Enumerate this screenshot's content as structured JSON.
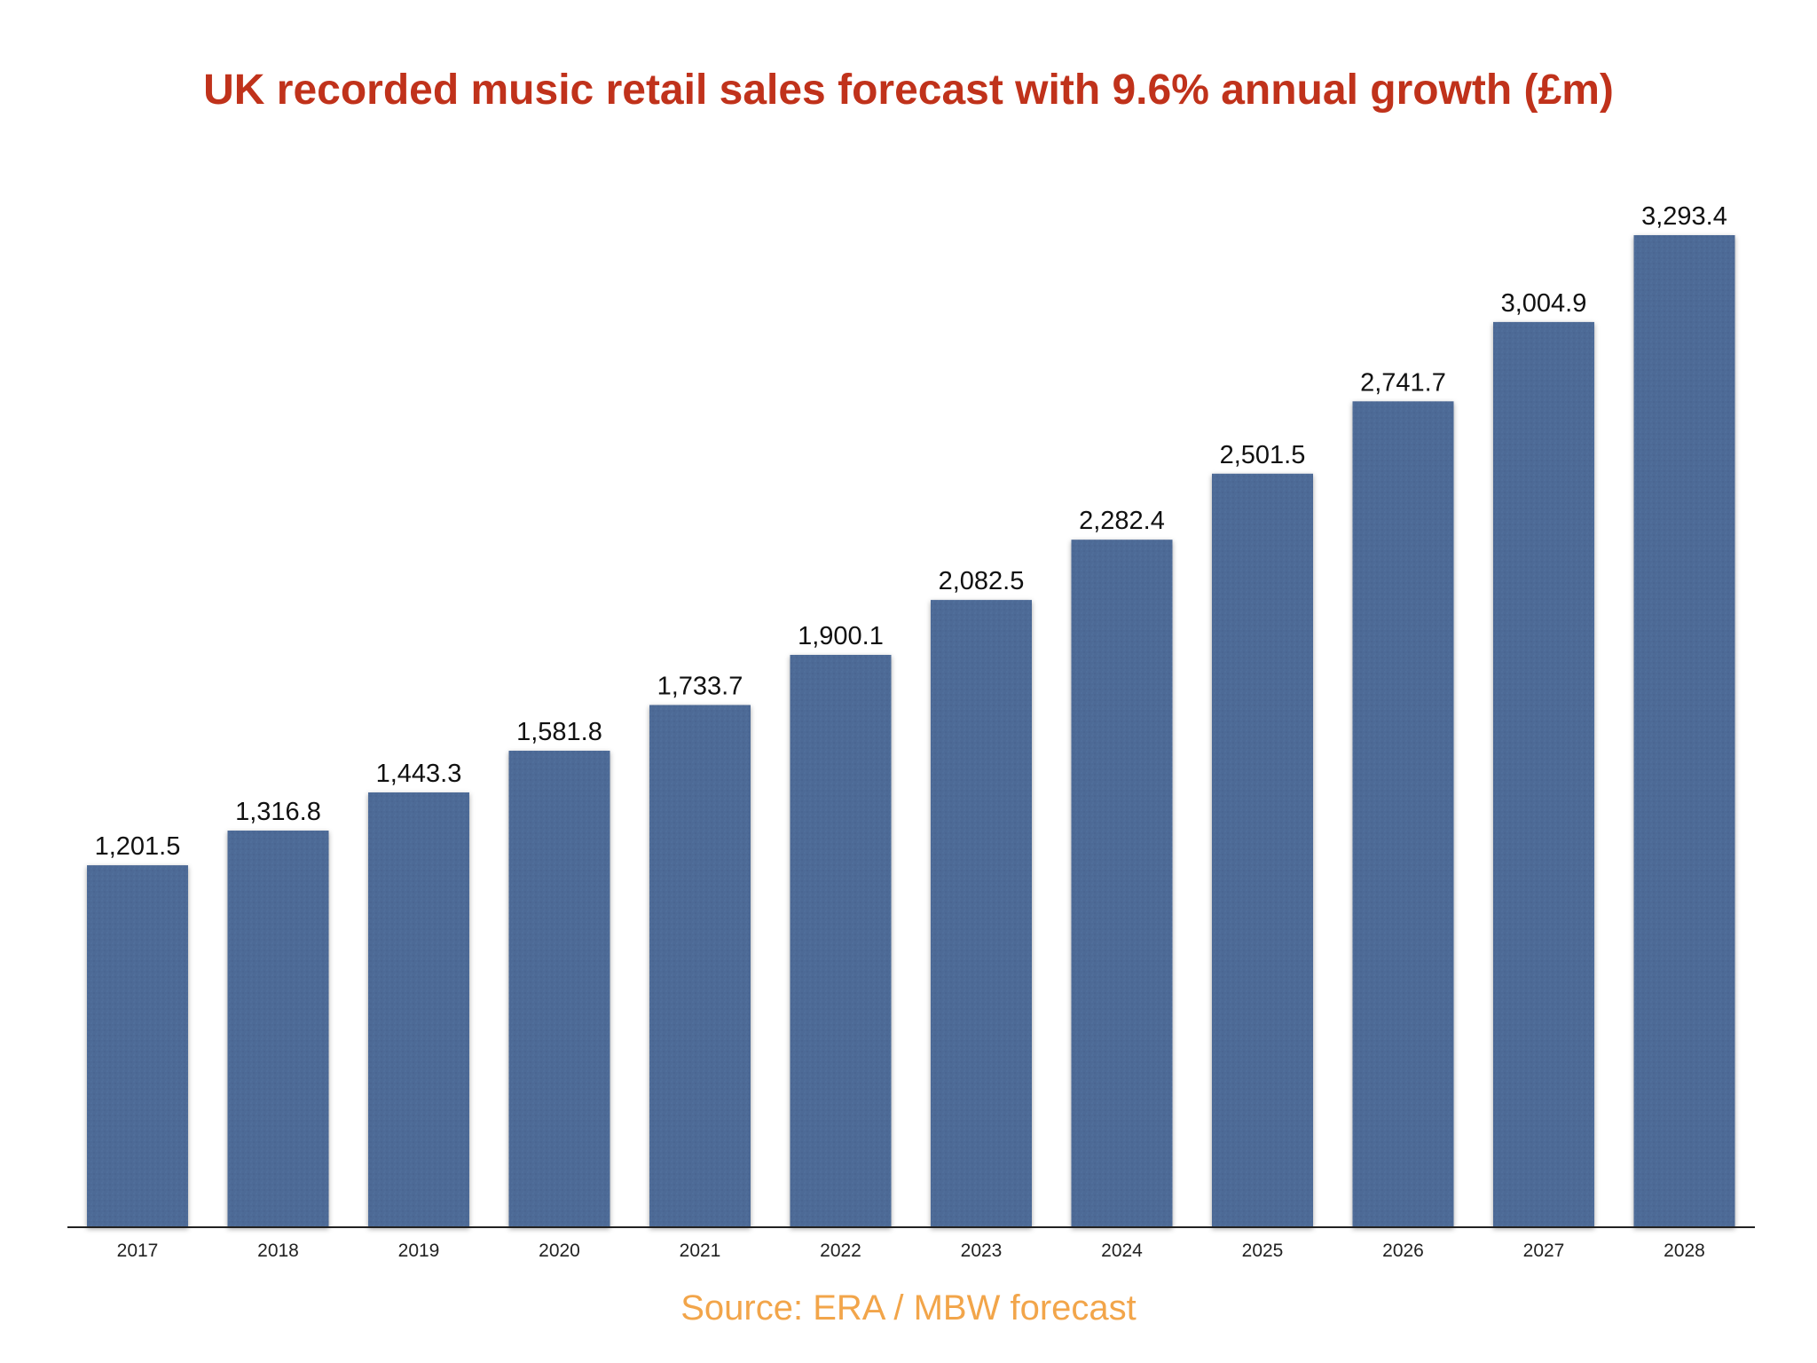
{
  "chart_data": {
    "type": "bar",
    "title": "UK recorded music retail sales forecast with 9.6% annual growth (£m)",
    "categories": [
      "2017",
      "2018",
      "2019",
      "2020",
      "2021",
      "2022",
      "2023",
      "2024",
      "2025",
      "2026",
      "2027",
      "2028"
    ],
    "values": [
      1201.5,
      1316.8,
      1443.3,
      1581.8,
      1733.7,
      1900.1,
      2082.5,
      2282.4,
      2501.5,
      2741.7,
      3004.9,
      3293.4
    ],
    "value_labels": [
      "1,201.5",
      "1,316.8",
      "1,443.3",
      "1,581.8",
      "1,733.7",
      "1,900.1",
      "2,082.5",
      "2,282.4",
      "2,501.5",
      "2,741.7",
      "3,004.9",
      "3,293.4"
    ],
    "xlabel": "",
    "ylabel": "",
    "ylim": [
      0,
      3293.4
    ],
    "grid": false,
    "legend": "none",
    "bar_color": "#4d6a96",
    "title_color": "#c0321b",
    "source_color": "#f2a54a"
  },
  "source": "Source: ERA / MBW forecast"
}
